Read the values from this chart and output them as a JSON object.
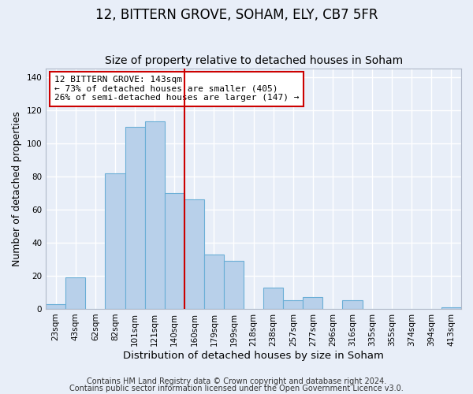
{
  "title": "12, BITTERN GROVE, SOHAM, ELY, CB7 5FR",
  "subtitle": "Size of property relative to detached houses in Soham",
  "xlabel": "Distribution of detached houses by size in Soham",
  "ylabel": "Number of detached properties",
  "bar_labels": [
    "23sqm",
    "43sqm",
    "62sqm",
    "82sqm",
    "101sqm",
    "121sqm",
    "140sqm",
    "160sqm",
    "179sqm",
    "199sqm",
    "218sqm",
    "238sqm",
    "257sqm",
    "277sqm",
    "296sqm",
    "316sqm",
    "335sqm",
    "355sqm",
    "374sqm",
    "394sqm",
    "413sqm"
  ],
  "bar_values": [
    3,
    19,
    0,
    82,
    110,
    113,
    70,
    66,
    33,
    29,
    0,
    13,
    5,
    7,
    0,
    5,
    0,
    0,
    0,
    0,
    1
  ],
  "bar_color": "#b8d0ea",
  "bar_edge_color": "#6aaed6",
  "vline_color": "#cc0000",
  "annotation_line1": "12 BITTERN GROVE: 143sqm",
  "annotation_line2": "← 73% of detached houses are smaller (405)",
  "annotation_line3": "26% of semi-detached houses are larger (147) →",
  "annotation_box_color": "#ffffff",
  "annotation_box_edge": "#cc0000",
  "ylim_max": 145,
  "yticks": [
    0,
    20,
    40,
    60,
    80,
    100,
    120,
    140
  ],
  "footer1": "Contains HM Land Registry data © Crown copyright and database right 2024.",
  "footer2": "Contains public sector information licensed under the Open Government Licence v3.0.",
  "bg_color": "#e8eef8",
  "grid_color": "#ffffff",
  "title_fontsize": 12,
  "subtitle_fontsize": 10,
  "xlabel_fontsize": 9.5,
  "ylabel_fontsize": 9,
  "tick_fontsize": 7.5,
  "footer_fontsize": 7,
  "vline_bar_index": 6
}
